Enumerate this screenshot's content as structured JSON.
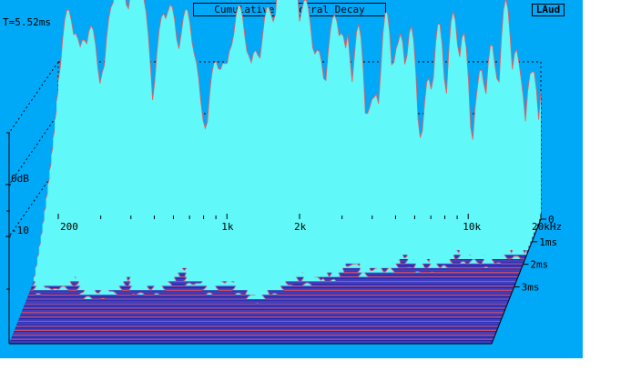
{
  "header": {
    "title": "Cumulative Spectral Decay",
    "logo": "LAud",
    "time_readout": "T=5.52ms"
  },
  "chart_data": {
    "type": "area",
    "title": "Cumulative Spectral Decay",
    "x_axis": {
      "scale": "log",
      "unit": "Hz",
      "range": [
        200,
        20000
      ],
      "tick_labels": [
        "200",
        "1k",
        "2k",
        "10k",
        "20kHz"
      ],
      "tick_values": [
        200,
        1000,
        2000,
        10000,
        20000
      ]
    },
    "y_axis": {
      "unit": "dB",
      "tick_labels": [
        "0dB",
        "-10"
      ],
      "tick_values": [
        0,
        -10
      ]
    },
    "z_axis": {
      "unit": "ms",
      "range": [
        0,
        5.52
      ],
      "tick_labels": [
        "0",
        "1ms",
        "2ms",
        "3ms"
      ],
      "tick_values": [
        0,
        1,
        2,
        3
      ]
    },
    "colors": {
      "background": "#00a8f8",
      "surface": "#60f8f8",
      "trace": "#f85858",
      "floor": "#4040c0",
      "grid": "#000000"
    }
  }
}
